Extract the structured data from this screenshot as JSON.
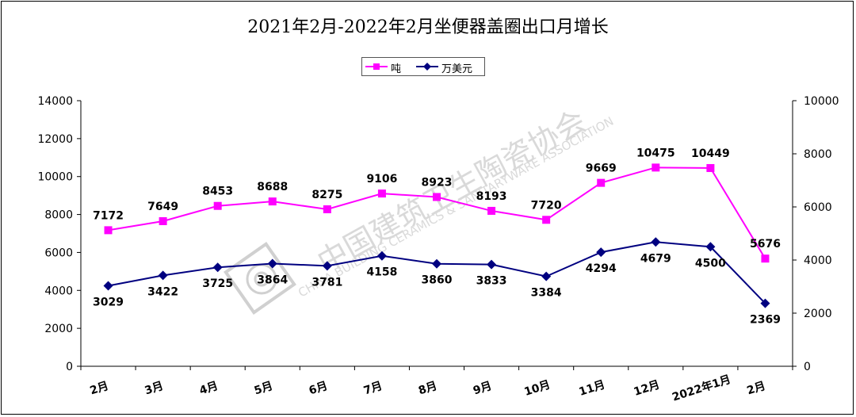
{
  "chart_data": {
    "type": "line",
    "title": "2021年2月-2022年2月坐便器盖圈出口月增长",
    "categories": [
      "2月",
      "3月",
      "4月",
      "5月",
      "6月",
      "7月",
      "8月",
      "9月",
      "10月",
      "11月",
      "12月",
      "2022年1月",
      "2月"
    ],
    "series": [
      {
        "name": "吨",
        "axis": "left",
        "color": "#ff00ff",
        "marker": "square",
        "values": [
          7172,
          7649,
          8453,
          8688,
          8275,
          9106,
          8923,
          8193,
          7720,
          9669,
          10475,
          10449,
          5676
        ]
      },
      {
        "name": "万美元",
        "axis": "right",
        "color": "#000080",
        "marker": "diamond",
        "values": [
          3029,
          3422,
          3725,
          3864,
          3781,
          4158,
          3860,
          3833,
          3384,
          4294,
          4679,
          4500,
          2369
        ]
      }
    ],
    "y_left": {
      "min": 0,
      "max": 14000,
      "ticks": [
        "0",
        "2000",
        "4000",
        "6000",
        "8000",
        "10000",
        "12000",
        "14000"
      ]
    },
    "y_right": {
      "min": 0,
      "max": 10000,
      "ticks": [
        "0",
        "2000",
        "4000",
        "6000",
        "8000",
        "10000"
      ]
    },
    "grid": false,
    "legend_position": "top-center"
  },
  "watermark": {
    "text_cn": "中国建筑卫生陶瓷协会",
    "text_en": "CHINA BUILDING CERAMICS & SANITARYWARE ASSOCIATION"
  }
}
